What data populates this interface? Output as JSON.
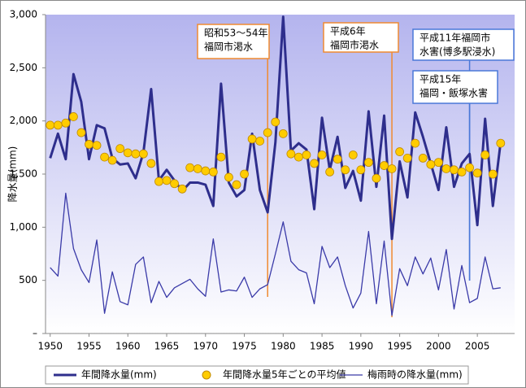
{
  "chart_data": {
    "type": "line",
    "y_label": "降水量(mm)",
    "x": [
      1950,
      1951,
      1952,
      1953,
      1954,
      1955,
      1956,
      1957,
      1958,
      1959,
      1960,
      1961,
      1962,
      1963,
      1964,
      1965,
      1966,
      1967,
      1968,
      1969,
      1970,
      1971,
      1972,
      1973,
      1974,
      1975,
      1976,
      1977,
      1978,
      1979,
      1980,
      1981,
      1982,
      1983,
      1984,
      1985,
      1986,
      1987,
      1988,
      1989,
      1990,
      1991,
      1992,
      1993,
      1994,
      1995,
      1996,
      1997,
      1998,
      1999,
      2000,
      2001,
      2002,
      2003,
      2004,
      2005,
      2006,
      2007,
      2008
    ],
    "series": [
      {
        "name": "年間降水量(mm)",
        "color": "#2e2e8c",
        "style": "line",
        "width": 3,
        "values": [
          1650,
          1880,
          1640,
          2440,
          2180,
          1640,
          1960,
          1930,
          1650,
          1590,
          1600,
          1460,
          1700,
          2300,
          1440,
          1540,
          1440,
          1340,
          1420,
          1420,
          1400,
          1200,
          2350,
          1420,
          1290,
          1350,
          1880,
          1350,
          1140,
          1800,
          2980,
          1720,
          1790,
          1730,
          1170,
          2030,
          1540,
          1850,
          1370,
          1530,
          1250,
          2090,
          1380,
          2050,
          890,
          1620,
          1280,
          2080,
          1850,
          1600,
          1350,
          1940,
          1380,
          1600,
          1690,
          1020,
          2020,
          1200,
          1800
        ]
      },
      {
        "name": "年間降水量5年ごとの平均値",
        "color": "#ffcc00",
        "style": "dots",
        "values": [
          1960,
          1960,
          1980,
          2040,
          1890,
          1780,
          1770,
          1660,
          1630,
          1740,
          1700,
          1690,
          1690,
          1600,
          1430,
          1440,
          1410,
          1360,
          1560,
          1550,
          1530,
          1520,
          1660,
          1470,
          1400,
          1500,
          1830,
          1810,
          1890,
          1990,
          1880,
          1690,
          1660,
          1680,
          1600,
          1680,
          1520,
          1640,
          1540,
          1680,
          1540,
          1610,
          1460,
          1580,
          1550,
          1710,
          1650,
          1790,
          1650,
          1590,
          1610,
          1550,
          1540,
          1520,
          1560,
          1510,
          1680,
          1500,
          1790
        ]
      },
      {
        "name": "梅雨時の降水量(mm)",
        "color": "#3a3aa8",
        "style": "line",
        "width": 1.3,
        "values": [
          620,
          540,
          1320,
          800,
          600,
          480,
          880,
          190,
          580,
          300,
          270,
          650,
          720,
          290,
          490,
          340,
          430,
          470,
          510,
          420,
          350,
          890,
          390,
          410,
          400,
          530,
          340,
          420,
          460,
          750,
          1050,
          680,
          600,
          570,
          280,
          820,
          620,
          720,
          450,
          240,
          380,
          960,
          280,
          870,
          170,
          610,
          450,
          720,
          560,
          710,
          410,
          790,
          230,
          640,
          290,
          330,
          720,
          420,
          430
        ]
      }
    ],
    "annotations": [
      {
        "lines": [
          "昭和53～54年",
          "福岡市渇水"
        ],
        "x": 1978,
        "color": "#f08a30"
      },
      {
        "lines": [
          "平成6年",
          "福岡市渇水"
        ],
        "x": 1994,
        "color": "#f08a30"
      },
      {
        "lines": [
          "平成11年福岡市",
          "水害(博多駅浸水)"
        ],
        "x": 2004,
        "color": "#4a78d8"
      },
      {
        "lines": [
          "平成15年",
          "福岡・飯塚水害"
        ],
        "x": 2004,
        "color": "#4a78d8"
      }
    ],
    "xlim": [
      1949.4,
      2009.8
    ],
    "xticks": [
      1950,
      1955,
      1960,
      1965,
      1970,
      1975,
      1980,
      1985,
      1990,
      1995,
      2000,
      2005
    ],
    "ylim": [
      0,
      3000
    ],
    "yticks": [
      {
        "value": 0,
        "label": "–"
      },
      500,
      {
        "value": 1000,
        "label": "1,000"
      },
      {
        "value": 1500,
        "label": "1,500"
      },
      {
        "value": 2000,
        "label": "2,000"
      },
      {
        "value": 2500,
        "label": "2,500"
      },
      {
        "value": 3000,
        "label": "3,000"
      }
    ]
  }
}
